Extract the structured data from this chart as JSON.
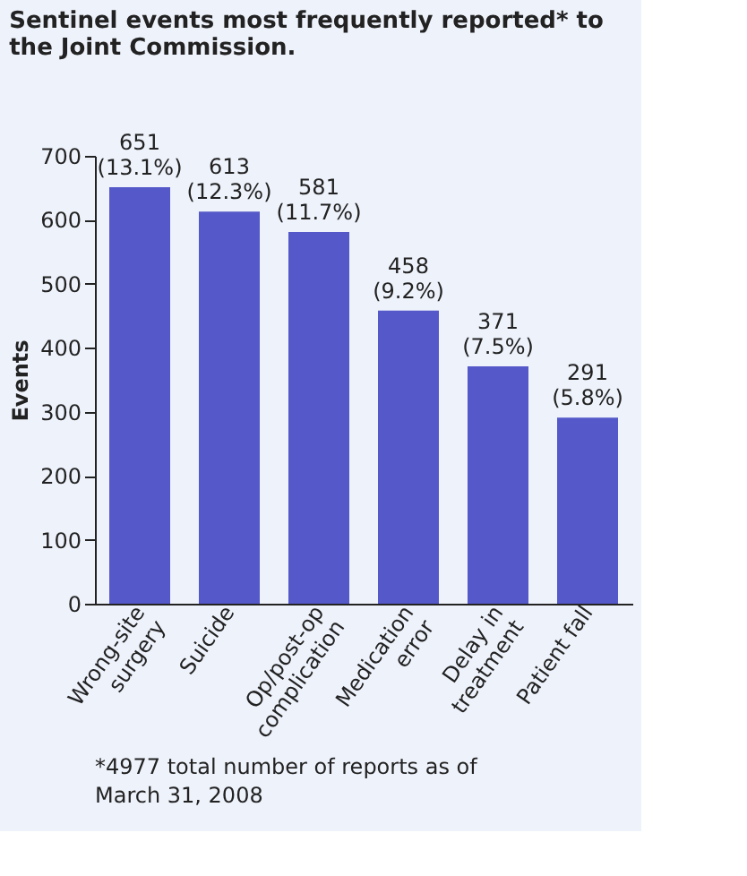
{
  "chart_data": {
    "type": "bar",
    "title": "Sentinel events most frequently reported* to the Joint Commission.",
    "ylabel": "Events",
    "categories": [
      "Wrong-site\nsurgery",
      "Suicide",
      "Op/post-op\ncomplication",
      "Medication\nerror",
      "Delay in\ntreatment",
      "Patient fall"
    ],
    "values": [
      651,
      613,
      581,
      458,
      371,
      291
    ],
    "value_labels": [
      "651\n(13.1%)",
      "613\n(12.3%)",
      "581\n(11.7%)",
      "458\n(9.2%)",
      "371\n(7.5%)",
      "291\n(5.8%)"
    ],
    "color": "#5558c8",
    "ylim": [
      0,
      700
    ],
    "yticks": [
      0,
      100,
      200,
      300,
      400,
      500,
      600,
      700
    ],
    "grid": false,
    "annotations": [
      "*4977 total number of reports as of March 31, 2008"
    ]
  }
}
